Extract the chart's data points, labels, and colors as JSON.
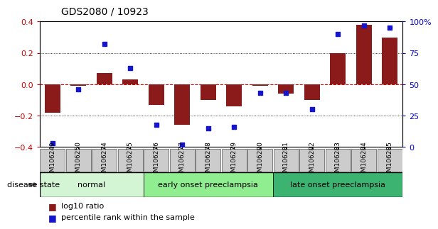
{
  "title": "GDS2080 / 10923",
  "samples": [
    "GSM106249",
    "GSM106250",
    "GSM106274",
    "GSM106275",
    "GSM106276",
    "GSM106277",
    "GSM106278",
    "GSM106279",
    "GSM106280",
    "GSM106281",
    "GSM106282",
    "GSM106283",
    "GSM106284",
    "GSM106285"
  ],
  "log10_ratio": [
    -0.18,
    -0.01,
    0.07,
    0.03,
    -0.13,
    -0.26,
    -0.1,
    -0.14,
    -0.01,
    -0.06,
    -0.1,
    0.2,
    0.38,
    0.3
  ],
  "percentile_rank": [
    3,
    46,
    82,
    63,
    18,
    2,
    15,
    16,
    43,
    43,
    30,
    90,
    97,
    95
  ],
  "bar_color": "#8B1A1A",
  "dot_color": "#1515CC",
  "ylim_left": [
    -0.4,
    0.4
  ],
  "ylim_right": [
    0,
    100
  ],
  "yticks_left": [
    -0.4,
    -0.2,
    0.0,
    0.2,
    0.4
  ],
  "yticks_right": [
    0,
    25,
    50,
    75,
    100
  ],
  "groups": [
    {
      "label": "normal",
      "start": 0,
      "end": 3,
      "color": "#d4f5d4"
    },
    {
      "label": "early onset preeclampsia",
      "start": 4,
      "end": 8,
      "color": "#90ee90"
    },
    {
      "label": "late onset preeclampsia",
      "start": 9,
      "end": 13,
      "color": "#3cb371"
    }
  ],
  "legend_items": [
    {
      "label": "log10 ratio",
      "color": "#8B1A1A"
    },
    {
      "label": "percentile rank within the sample",
      "color": "#1515CC"
    }
  ],
  "disease_state_label": "disease state",
  "background_color": "#ffffff",
  "plot_bg_color": "#ffffff",
  "zero_line_color": "#cc0000",
  "tick_label_color_left": "#cc0000",
  "tick_label_color_right": "#0000cc",
  "xtick_bg_color": "#cccccc"
}
